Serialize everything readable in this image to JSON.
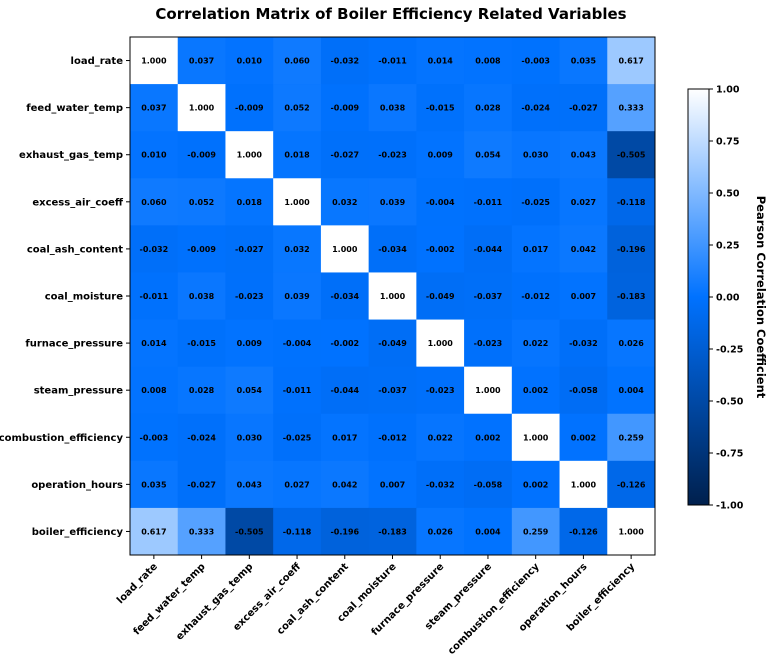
{
  "chart_data": {
    "type": "heatmap",
    "title": "Correlation Matrix of Boiler Efficiency Related Variables",
    "variables": [
      "load_rate",
      "feed_water_temp",
      "exhaust_gas_temp",
      "excess_air_coeff",
      "coal_ash_content",
      "coal_moisture",
      "furnace_pressure",
      "steam_pressure",
      "combustion_efficiency",
      "operation_hours",
      "boiler_efficiency"
    ],
    "values": [
      [
        "1.000",
        "0.037",
        "0.010",
        "0.060",
        "-0.032",
        "-0.011",
        "0.014",
        "0.008",
        "-0.003",
        "0.035",
        "0.617"
      ],
      [
        "0.037",
        "1.000",
        "-0.009",
        "0.052",
        "-0.009",
        "0.038",
        "-0.015",
        "0.028",
        "-0.024",
        "-0.027",
        "0.333"
      ],
      [
        "0.010",
        "-0.009",
        "1.000",
        "0.018",
        "-0.027",
        "-0.023",
        "0.009",
        "0.054",
        "0.030",
        "0.043",
        "-0.505"
      ],
      [
        "0.060",
        "0.052",
        "0.018",
        "1.000",
        "0.032",
        "0.039",
        "-0.004",
        "-0.011",
        "-0.025",
        "0.027",
        "-0.118"
      ],
      [
        "-0.032",
        "-0.009",
        "-0.027",
        "0.032",
        "1.000",
        "-0.034",
        "-0.002",
        "-0.044",
        "0.017",
        "0.042",
        "-0.196"
      ],
      [
        "-0.011",
        "0.038",
        "-0.023",
        "0.039",
        "-0.034",
        "1.000",
        "-0.049",
        "-0.037",
        "-0.012",
        "0.007",
        "-0.183"
      ],
      [
        "0.014",
        "-0.015",
        "0.009",
        "-0.004",
        "-0.002",
        "-0.049",
        "1.000",
        "-0.023",
        "0.022",
        "-0.032",
        "0.026"
      ],
      [
        "0.008",
        "0.028",
        "0.054",
        "-0.011",
        "-0.044",
        "-0.037",
        "-0.023",
        "1.000",
        "0.002",
        "-0.058",
        "0.004"
      ],
      [
        "-0.003",
        "-0.024",
        "0.030",
        "-0.025",
        "0.017",
        "-0.012",
        "0.022",
        "0.002",
        "1.000",
        "0.002",
        "0.259"
      ],
      [
        "0.035",
        "-0.027",
        "0.043",
        "0.027",
        "0.042",
        "0.007",
        "-0.032",
        "-0.058",
        "0.002",
        "1.000",
        "-0.126"
      ],
      [
        "0.617",
        "0.333",
        "-0.505",
        "-0.118",
        "-0.196",
        "-0.183",
        "0.026",
        "0.004",
        "0.259",
        "-0.126",
        "1.000"
      ]
    ],
    "colorbar": {
      "label": "Pearson Correlation Coefficient",
      "range": [
        -1,
        1
      ],
      "ticks": [
        "1.00",
        "0.75",
        "0.50",
        "0.25",
        "0.00",
        "-0.25",
        "-0.50",
        "-0.75",
        "-1.00"
      ]
    },
    "colorscale": [
      "#00204d",
      "#0072ff",
      "#ffffff"
    ]
  }
}
